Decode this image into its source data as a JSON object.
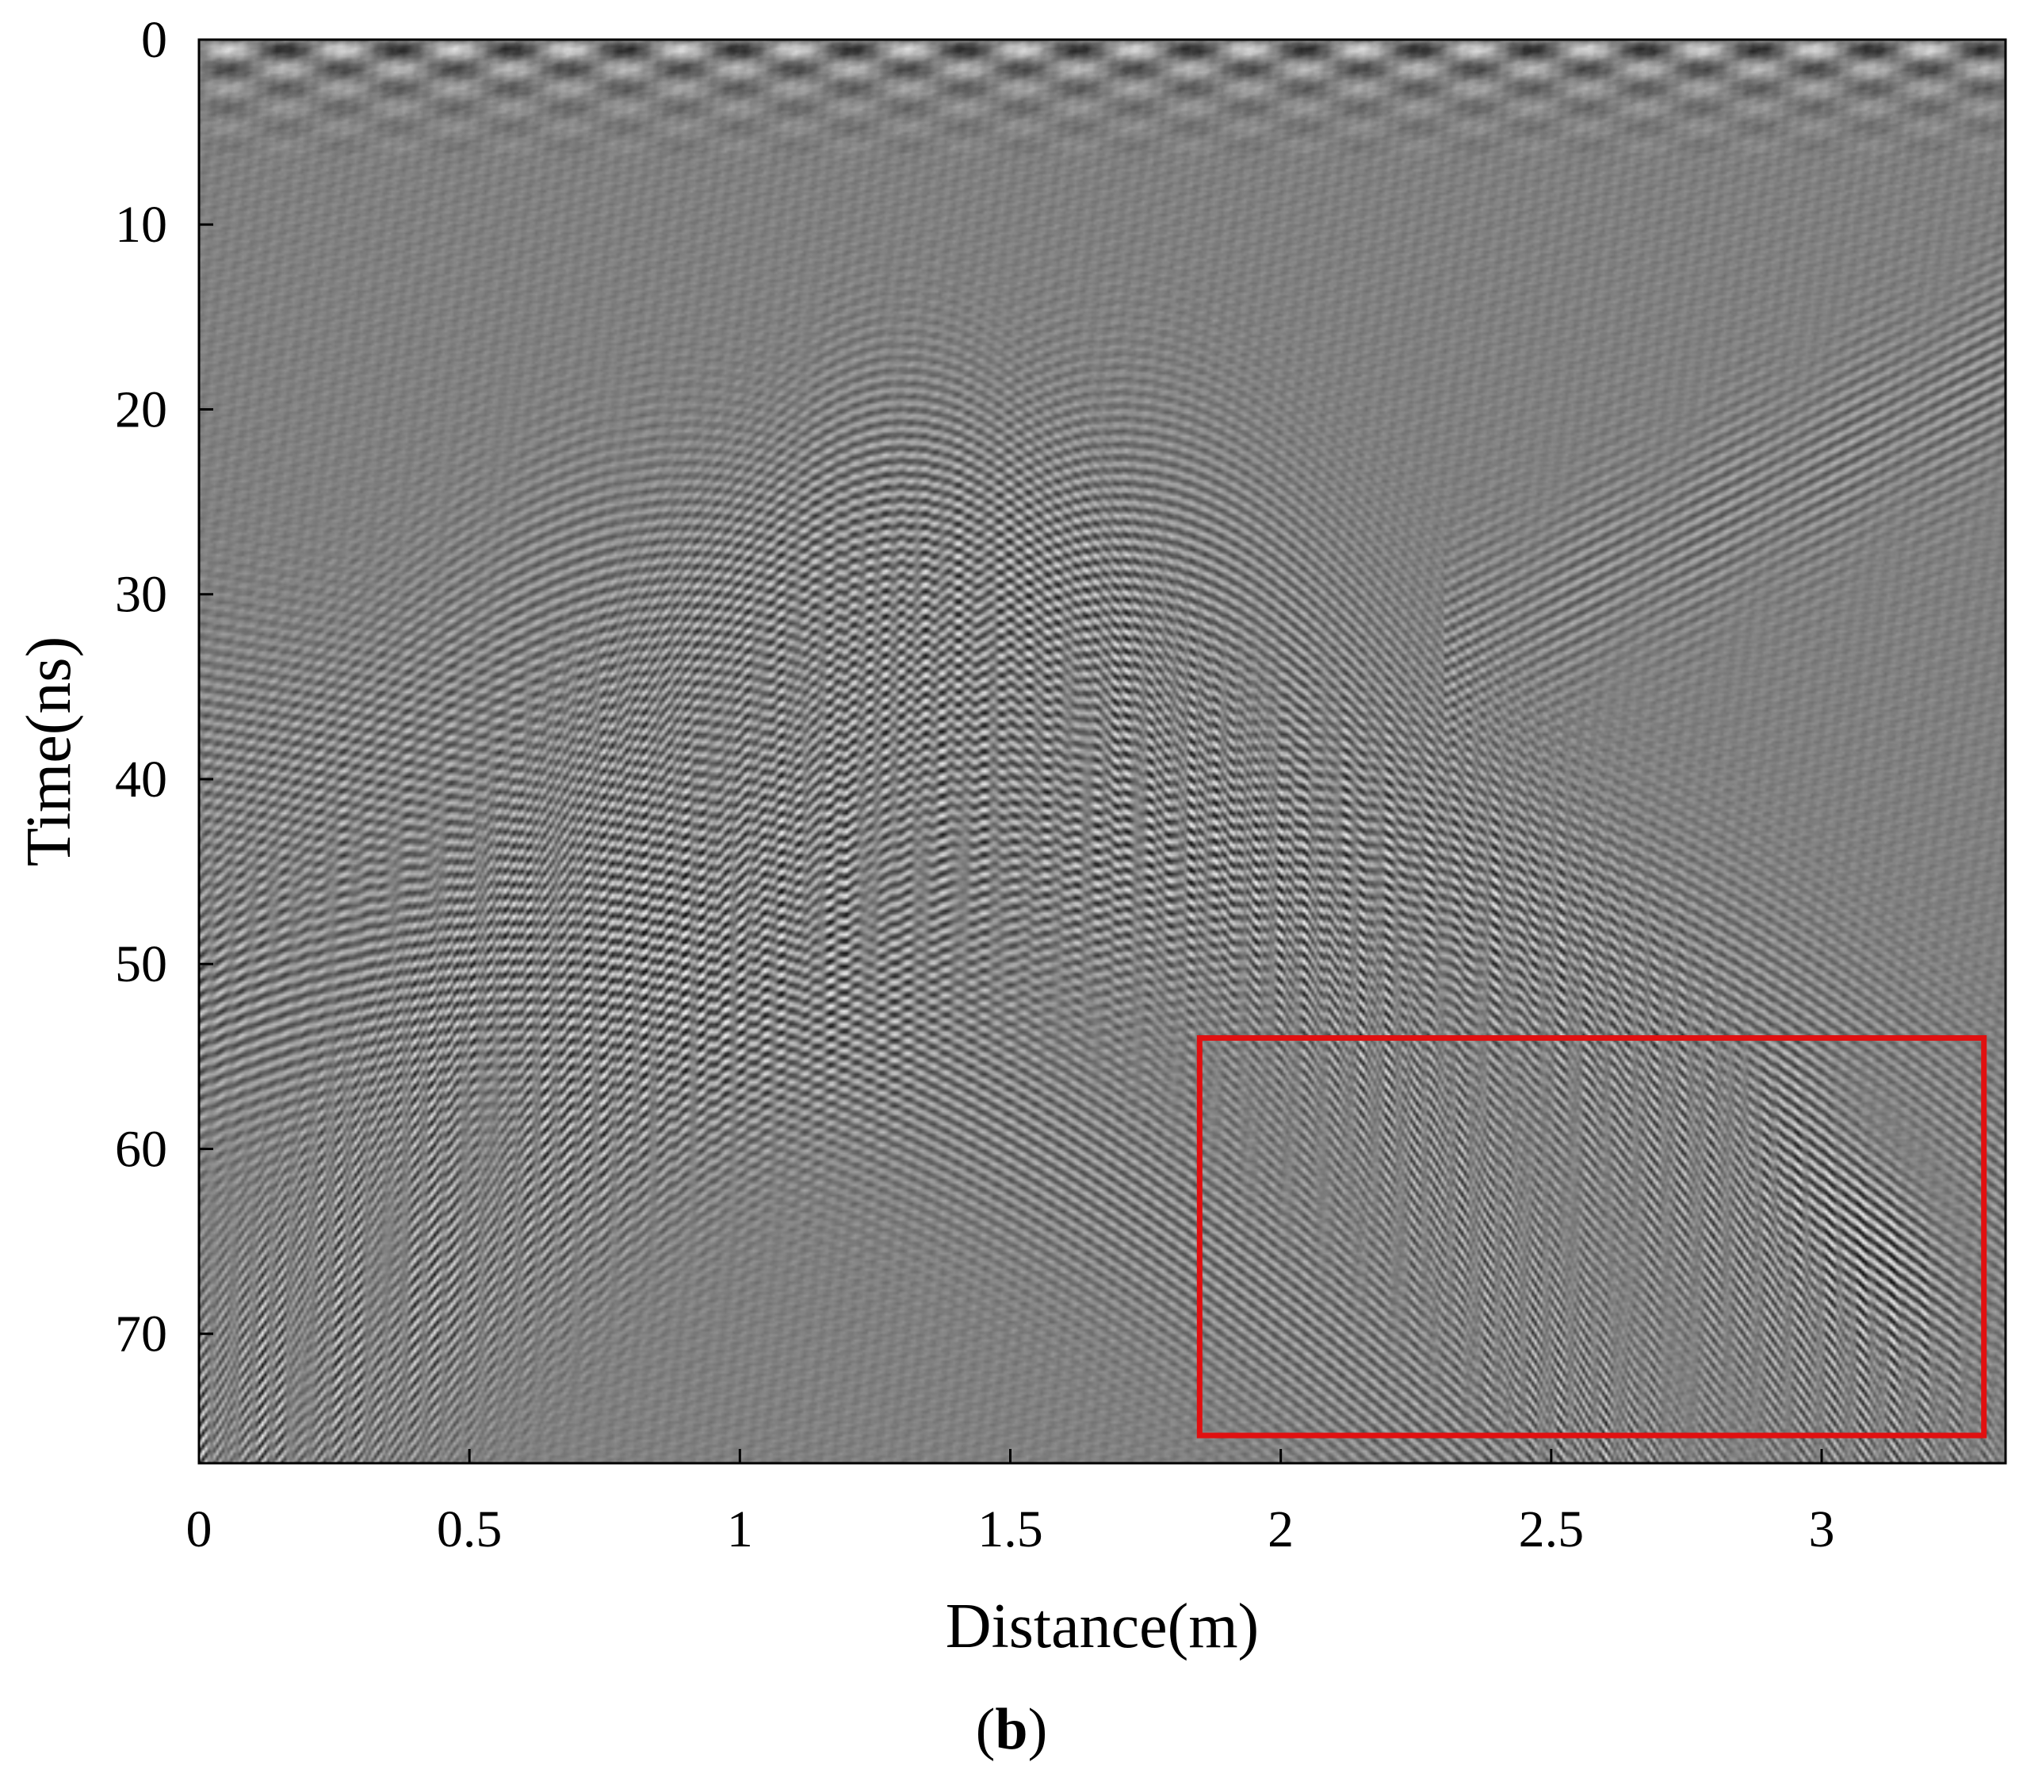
{
  "chart_data": {
    "type": "heatmap",
    "colormap": "gray",
    "xlabel": "Distance(m)",
    "ylabel": "Time(ns)",
    "xlim": [
      0,
      3.34
    ],
    "ylim": [
      0,
      77
    ],
    "y_reversed": true,
    "xticks": [
      0,
      0.5,
      1,
      1.5,
      2,
      2.5,
      3
    ],
    "xtick_labels": [
      "0",
      "0.5",
      "1",
      "1.5",
      "2",
      "2.5",
      "3"
    ],
    "yticks": [
      0,
      10,
      20,
      30,
      40,
      50,
      60,
      70
    ],
    "ytick_labels": [
      "0",
      "10",
      "20",
      "30",
      "40",
      "50",
      "60",
      "70"
    ],
    "grid": false,
    "highlight_box": {
      "color": "#e01010",
      "x_range": [
        1.85,
        3.3
      ],
      "y_range": [
        54,
        75.5
      ]
    },
    "features": [
      {
        "kind": "direct-wave",
        "time_ns": [
          0,
          4
        ]
      },
      {
        "kind": "hyperbola",
        "apex_x": 1.3,
        "apex_t": 25
      },
      {
        "kind": "hyperbola",
        "apex_x": 1.7,
        "apex_t": 29
      },
      {
        "kind": "dipping-reflector",
        "from": [
          2.4,
          32
        ],
        "to": [
          3.34,
          18
        ]
      },
      {
        "kind": "strong-reflector",
        "x_range": [
          2.85,
          3.3
        ],
        "t_range": [
          58,
          74
        ]
      }
    ]
  },
  "panel_label": {
    "open": "(",
    "letter": "b",
    "close": ")"
  }
}
